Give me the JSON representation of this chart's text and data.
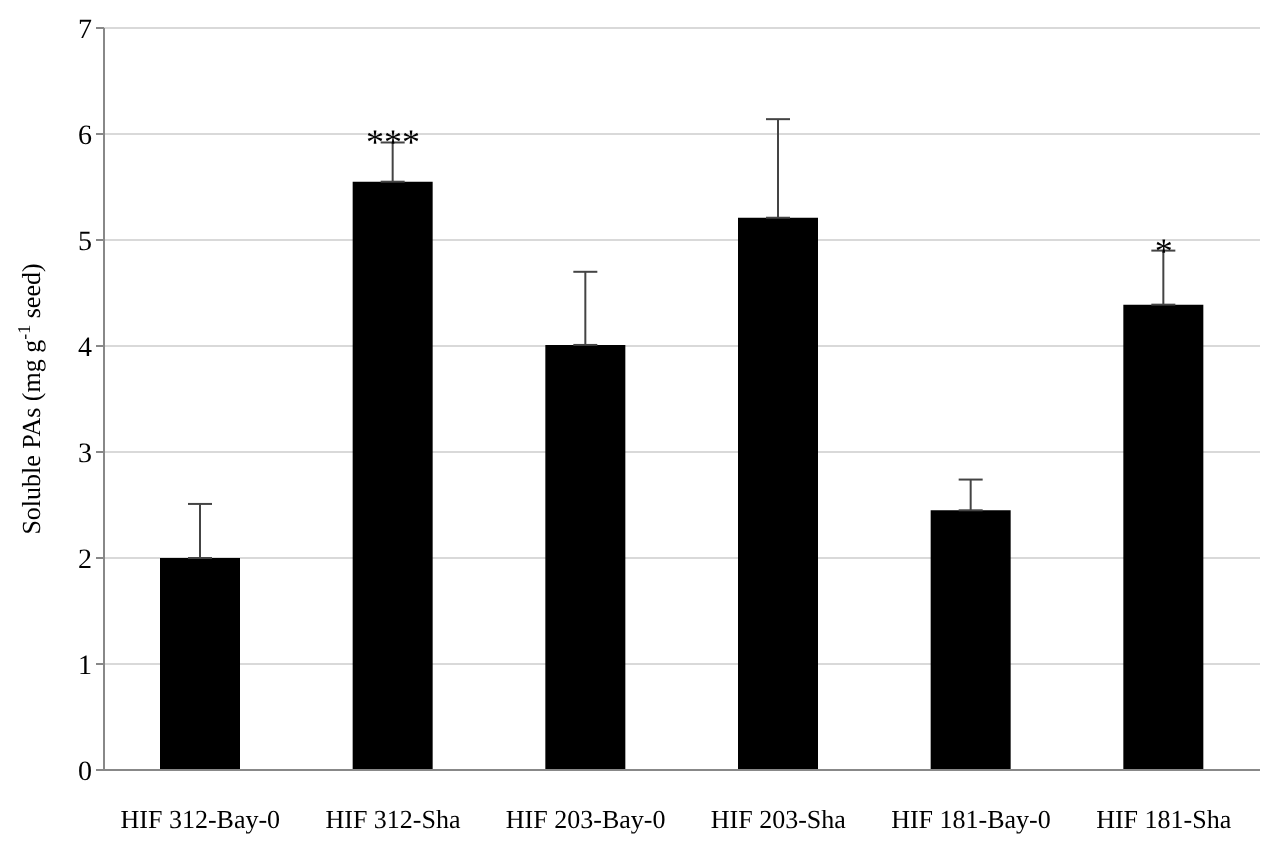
{
  "chart_data": {
    "type": "bar",
    "ylabel": "Soluble PAs (mg g$^{-1}$ seed)",
    "categories": [
      "HIF 312-Bay-0",
      "HIF 312-Sha",
      "HIF 203-Bay-0",
      "HIF 203-Sha",
      "HIF 181-Bay-0",
      "HIF 181-Sha"
    ],
    "values": [
      2.0,
      5.55,
      4.01,
      5.21,
      2.45,
      4.39
    ],
    "errors": [
      [
        2.0,
        2.51
      ],
      [
        5.55,
        5.92
      ],
      [
        4.01,
        4.7
      ],
      [
        5.21,
        6.14
      ],
      [
        2.45,
        2.74
      ],
      [
        4.39,
        4.9
      ]
    ],
    "color": "#000000",
    "ylim": [
      0,
      7
    ],
    "yticks": [
      0,
      1,
      2,
      3,
      4,
      5,
      6,
      7
    ],
    "grid": "y",
    "annotations": [
      {
        "text": "***",
        "x": "HIF 312-Sha",
        "y": 5.92
      },
      {
        "text": "*",
        "x": "HIF 181-Sha",
        "y": 4.9
      }
    ]
  }
}
